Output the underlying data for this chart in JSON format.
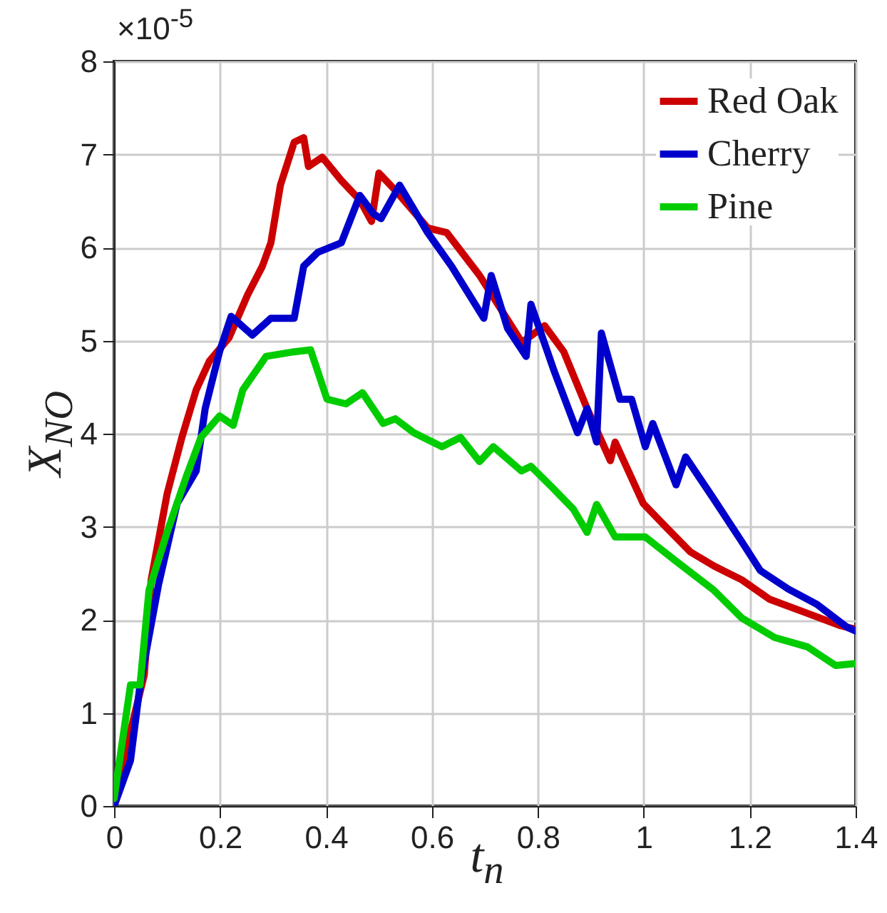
{
  "chart_data": {
    "type": "line",
    "xlabel": "t$_{n}$",
    "ylabel": "X$_{NO}$",
    "annotations": [
      "×10$^{-5}$"
    ],
    "xlim": [
      0,
      1.4
    ],
    "xticks": [
      0,
      0.2,
      0.4,
      0.6,
      0.8,
      1,
      1.2,
      1.4
    ],
    "ylim": [
      0,
      8
    ],
    "yticks": [
      0,
      1,
      2,
      3,
      4,
      5,
      6,
      7,
      8
    ],
    "grid": true,
    "legend": "top right",
    "line_style": "solid",
    "series": [
      {
        "name": "Red Oak",
        "color": "#cc0000",
        "x": [
          0,
          0.057,
          0.07,
          0.1,
          0.128,
          0.155,
          0.18,
          0.217,
          0.252,
          0.28,
          0.296,
          0.314,
          0.34,
          0.358,
          0.367,
          0.393,
          0.429,
          0.464,
          0.486,
          0.5,
          0.53,
          0.592,
          0.628,
          0.69,
          0.77,
          0.813,
          0.849,
          0.893,
          0.937,
          0.946,
          0.999,
          1.043,
          1.088,
          1.132,
          1.185,
          1.238,
          1.309,
          1.37,
          1.4
        ],
        "values": [
          0.08,
          1.41,
          2.43,
          3.35,
          3.96,
          4.47,
          4.78,
          5.03,
          5.49,
          5.8,
          6.05,
          6.67,
          7.13,
          7.18,
          6.87,
          6.97,
          6.72,
          6.51,
          6.28,
          6.8,
          6.62,
          6.21,
          6.16,
          5.7,
          4.98,
          5.16,
          4.88,
          4.27,
          3.71,
          3.91,
          3.25,
          2.99,
          2.73,
          2.58,
          2.43,
          2.22,
          2.07,
          1.94,
          1.9
        ]
      },
      {
        "name": "Cherry",
        "color": "#0000cc",
        "x": [
          0,
          0.031,
          0.049,
          0.084,
          0.119,
          0.155,
          0.172,
          0.199,
          0.221,
          0.261,
          0.296,
          0.34,
          0.358,
          0.385,
          0.429,
          0.464,
          0.49,
          0.504,
          0.539,
          0.592,
          0.637,
          0.698,
          0.712,
          0.743,
          0.778,
          0.787,
          0.831,
          0.875,
          0.893,
          0.911,
          0.92,
          0.955,
          0.977,
          1.003,
          1.017,
          1.061,
          1.079,
          1.132,
          1.185,
          1.22,
          1.273,
          1.326,
          1.384,
          1.4
        ],
        "values": [
          0,
          0.49,
          1.3,
          2.38,
          3.25,
          3.6,
          4.27,
          4.88,
          5.26,
          5.06,
          5.24,
          5.24,
          5.8,
          5.95,
          6.05,
          6.56,
          6.36,
          6.31,
          6.67,
          6.16,
          5.8,
          5.24,
          5.7,
          5.13,
          4.83,
          5.39,
          4.67,
          4.01,
          4.27,
          3.91,
          5.08,
          4.37,
          4.37,
          3.86,
          4.11,
          3.45,
          3.75,
          3.3,
          2.84,
          2.53,
          2.33,
          2.17,
          1.92,
          1.88
        ]
      },
      {
        "name": "Pine",
        "color": "#00cc00",
        "x": [
          0,
          0.031,
          0.049,
          0.066,
          0.1,
          0.137,
          0.164,
          0.199,
          0.225,
          0.243,
          0.287,
          0.34,
          0.371,
          0.402,
          0.438,
          0.469,
          0.508,
          0.531,
          0.566,
          0.619,
          0.654,
          0.69,
          0.716,
          0.769,
          0.787,
          0.831,
          0.867,
          0.893,
          0.911,
          0.946,
          1.003,
          1.061,
          1.132,
          1.185,
          1.247,
          1.309,
          1.362,
          1.4
        ],
        "values": [
          0.08,
          1.3,
          1.3,
          2.32,
          2.94,
          3.55,
          3.96,
          4.19,
          4.09,
          4.47,
          4.83,
          4.88,
          4.9,
          4.37,
          4.32,
          4.44,
          4.11,
          4.16,
          4.01,
          3.86,
          3.96,
          3.7,
          3.86,
          3.6,
          3.65,
          3.4,
          3.19,
          2.94,
          3.24,
          2.89,
          2.89,
          2.63,
          2.32,
          2.02,
          1.81,
          1.71,
          1.51,
          1.53
        ]
      }
    ]
  }
}
